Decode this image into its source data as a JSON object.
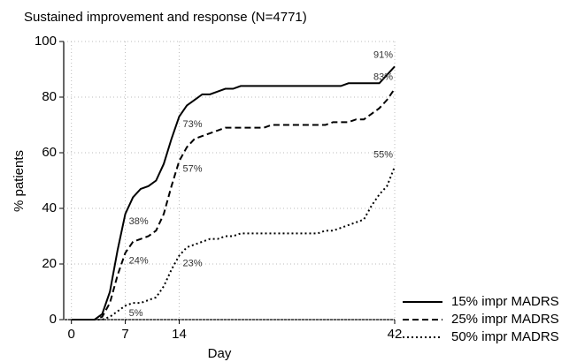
{
  "chart_data": {
    "type": "line",
    "title": "Sustained improvement and response (N=4771)",
    "x_label": "Day",
    "y_label": "% patients",
    "x": [
      0,
      1,
      2,
      3,
      4,
      5,
      6,
      7,
      8,
      9,
      10,
      11,
      12,
      13,
      14,
      15,
      16,
      17,
      18,
      19,
      20,
      21,
      22,
      23,
      24,
      25,
      26,
      27,
      28,
      29,
      30,
      31,
      32,
      33,
      34,
      35,
      36,
      37,
      38,
      39,
      40,
      41,
      42
    ],
    "xlim": [
      -1,
      42
    ],
    "xticks": [
      0,
      7,
      14,
      42
    ],
    "ylim": [
      0,
      100
    ],
    "yticks": [
      0,
      20,
      40,
      60,
      80,
      100
    ],
    "grid": true,
    "legend": "lower right outside",
    "series": [
      {
        "name": "15% impr MADRS",
        "color": "#000000",
        "style": "solid",
        "values": [
          0,
          0,
          0,
          0,
          2,
          10,
          25,
          38,
          44,
          47,
          48,
          50,
          56,
          65,
          73,
          77,
          79,
          81,
          81,
          82,
          83,
          83,
          84,
          84,
          84,
          84,
          84,
          84,
          84,
          84,
          84,
          84,
          84,
          84,
          84,
          84,
          85,
          85,
          85,
          85,
          85,
          88,
          91
        ],
        "value_labels": [
          null,
          null,
          null,
          null,
          null,
          null,
          null,
          "38%",
          null,
          null,
          null,
          null,
          null,
          null,
          "73%",
          null,
          null,
          null,
          null,
          null,
          null,
          null,
          null,
          null,
          null,
          null,
          null,
          null,
          null,
          null,
          null,
          null,
          null,
          null,
          null,
          null,
          null,
          null,
          null,
          null,
          null,
          null,
          "91%"
        ]
      },
      {
        "name": "25% impr MADRS",
        "color": "#000000",
        "style": "dashed",
        "values": [
          0,
          0,
          0,
          0,
          1,
          6,
          16,
          24,
          28,
          29,
          30,
          32,
          38,
          48,
          57,
          62,
          65,
          66,
          67,
          68,
          69,
          69,
          69,
          69,
          69,
          69,
          70,
          70,
          70,
          70,
          70,
          70,
          70,
          70,
          71,
          71,
          71,
          72,
          72,
          74,
          76,
          79,
          83
        ],
        "value_labels": [
          null,
          null,
          null,
          null,
          null,
          null,
          null,
          "24%",
          null,
          null,
          null,
          null,
          null,
          null,
          "57%",
          null,
          null,
          null,
          null,
          null,
          null,
          null,
          null,
          null,
          null,
          null,
          null,
          null,
          null,
          null,
          null,
          null,
          null,
          null,
          null,
          null,
          null,
          null,
          null,
          null,
          null,
          null,
          "83%"
        ]
      },
      {
        "name": "50% impr MADRS",
        "color": "#000000",
        "style": "dotted",
        "values": [
          0,
          0,
          0,
          0,
          0,
          1,
          3,
          5,
          6,
          6,
          7,
          8,
          12,
          18,
          23,
          26,
          27,
          28,
          29,
          29,
          30,
          30,
          31,
          31,
          31,
          31,
          31,
          31,
          31,
          31,
          31,
          31,
          31,
          32,
          32,
          33,
          34,
          35,
          36,
          41,
          45,
          48,
          55
        ],
        "value_labels": [
          null,
          null,
          null,
          null,
          null,
          null,
          null,
          "5%",
          null,
          null,
          null,
          null,
          null,
          null,
          "23%",
          null,
          null,
          null,
          null,
          null,
          null,
          null,
          null,
          null,
          null,
          null,
          null,
          null,
          null,
          null,
          null,
          null,
          null,
          null,
          null,
          null,
          null,
          null,
          null,
          null,
          null,
          null,
          "55%"
        ]
      }
    ]
  }
}
